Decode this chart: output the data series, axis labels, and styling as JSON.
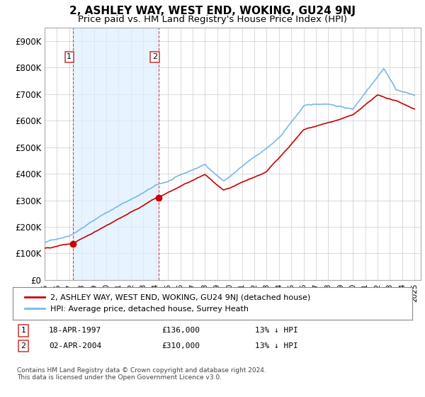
{
  "title": "2, ASHLEY WAY, WEST END, WOKING, GU24 9NJ",
  "subtitle": "Price paid vs. HM Land Registry's House Price Index (HPI)",
  "ylim": [
    0,
    950000
  ],
  "yticks": [
    0,
    100000,
    200000,
    300000,
    400000,
    500000,
    600000,
    700000,
    800000,
    900000
  ],
  "ytick_labels": [
    "£0",
    "£100K",
    "£200K",
    "£300K",
    "£400K",
    "£500K",
    "£600K",
    "£700K",
    "£800K",
    "£900K"
  ],
  "sale1_date": 1997.3,
  "sale1_price": 136000,
  "sale2_date": 2004.25,
  "sale2_price": 310000,
  "hpi_color": "#7ab8e8",
  "price_color": "#cc0000",
  "shade_color": "#ddeeff",
  "vline_color": "#cc4444",
  "background_color": "#ffffff",
  "grid_color": "#cccccc",
  "legend_label1": "2, ASHLEY WAY, WEST END, WOKING, GU24 9NJ (detached house)",
  "legend_label2": "HPI: Average price, detached house, Surrey Heath",
  "table_row1": [
    "1",
    "18-APR-1997",
    "£136,000",
    "13% ↓ HPI"
  ],
  "table_row2": [
    "2",
    "02-APR-2004",
    "£310,000",
    "13% ↓ HPI"
  ],
  "footnote": "Contains HM Land Registry data © Crown copyright and database right 2024.\nThis data is licensed under the Open Government Licence v3.0.",
  "title_fontsize": 11,
  "subtitle_fontsize": 9.5
}
